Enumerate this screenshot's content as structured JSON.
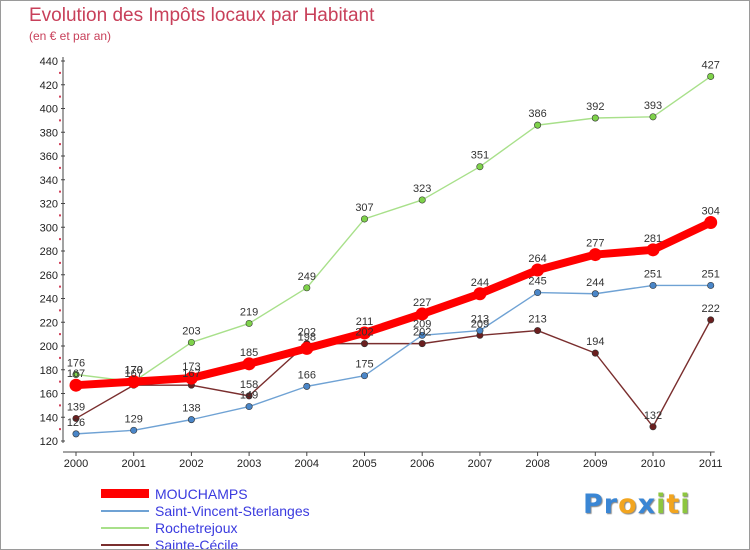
{
  "title": "Evolution des Impôts locaux par Habitant",
  "subtitle": "(en € et par an)",
  "chart_data": {
    "type": "line",
    "title": "Evolution des Impôts locaux par Habitant",
    "subtitle": "(en € et par an)",
    "xlabel": "",
    "ylabel": "",
    "x": [
      "2000",
      "2001",
      "2002",
      "2003",
      "2004",
      "2005",
      "2006",
      "2007",
      "2008",
      "2009",
      "2010",
      "2011"
    ],
    "ylim": [
      120,
      440
    ],
    "y_ticks": [
      120,
      140,
      160,
      180,
      200,
      220,
      240,
      260,
      280,
      300,
      320,
      340,
      360,
      380,
      400,
      420,
      440
    ],
    "grid": false,
    "legend_position": "bottom-left",
    "series": [
      {
        "name": "MOUCHAMPS",
        "color": "#ff0000",
        "marker_color": "#ff0000",
        "thick": true,
        "values": [
          167,
          170,
          173,
          185,
          198,
          211,
          227,
          244,
          264,
          277,
          281,
          304
        ]
      },
      {
        "name": "Saint-Vincent-Sterlanges",
        "color": "#6fa2d4",
        "marker_color": "#4a86c8",
        "values": [
          126,
          129,
          138,
          149,
          166,
          175,
          209,
          213,
          245,
          244,
          251,
          251
        ]
      },
      {
        "name": "Rochetrejoux",
        "color": "#a8e08a",
        "marker_color": "#7ed24a",
        "values": [
          176,
          170,
          203,
          219,
          249,
          307,
          323,
          351,
          386,
          392,
          393,
          427
        ]
      },
      {
        "name": "Sainte-Cécile",
        "color": "#7a2e2e",
        "marker_color": "#6b1f1f",
        "values": [
          139,
          167,
          167,
          158,
          202,
          202,
          202,
          209,
          213,
          194,
          132,
          222
        ]
      }
    ]
  },
  "logo": {
    "letters": [
      "P",
      "r",
      "o",
      "x",
      "i",
      "t",
      "i"
    ],
    "colors": [
      "#3a86d4",
      "#3a86d4",
      "#f2a51f",
      "#3a86d4",
      "#8dc63f",
      "#f2a51f",
      "#8dc63f"
    ]
  }
}
